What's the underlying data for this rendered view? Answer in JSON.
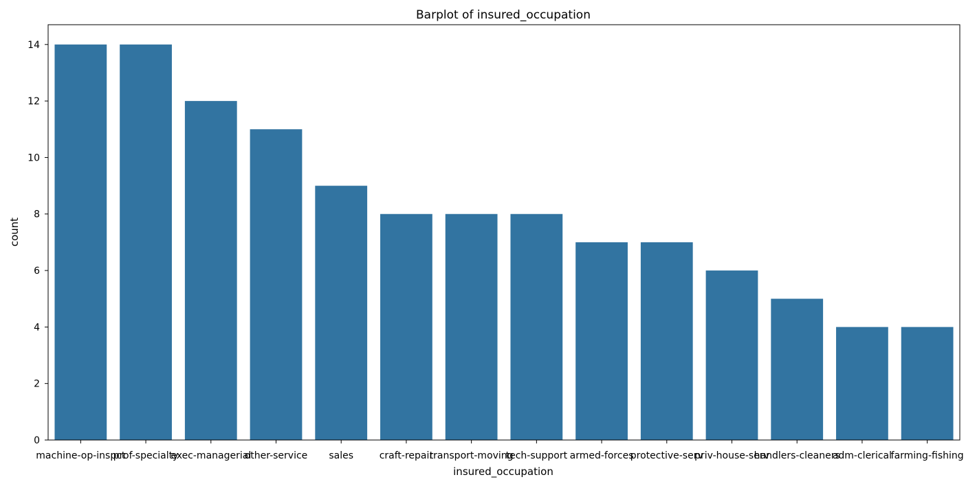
{
  "chart_data": {
    "type": "bar",
    "title": "Barplot of insured_occupation",
    "xlabel": "insured_occupation",
    "ylabel": "count",
    "categories": [
      "machine-op-inspct",
      "prof-specialty",
      "exec-managerial",
      "other-service",
      "sales",
      "craft-repair",
      "transport-moving",
      "tech-support",
      "armed-forces",
      "protective-serv",
      "priv-house-serv",
      "handlers-cleaners",
      "adm-clerical",
      "farming-fishing"
    ],
    "values": [
      14,
      14,
      12,
      11,
      9,
      8,
      8,
      8,
      7,
      7,
      6,
      5,
      4,
      4
    ],
    "ylim": [
      0,
      14.7
    ],
    "yticks": [
      0,
      2,
      4,
      6,
      8,
      10,
      12,
      14
    ],
    "grid": false,
    "bar_color": "#3274a1"
  }
}
